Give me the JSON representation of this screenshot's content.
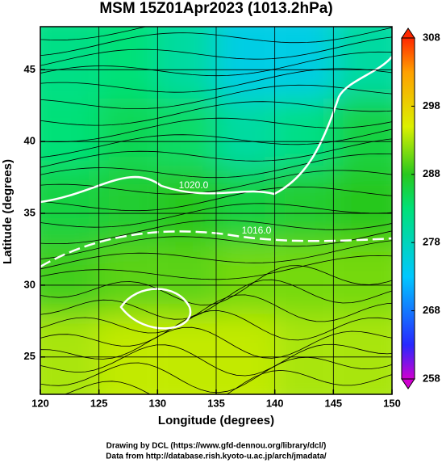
{
  "chart_data": {
    "type": "heatmap",
    "title": "MSM 15Z01Apr2023 (1013.2hPa)",
    "x_label": "Longitude (degrees)",
    "y_label": "Latitude  (degrees)",
    "xlim": [
      120,
      150
    ],
    "ylim": [
      22.4,
      48
    ],
    "xticks": [
      120,
      125,
      130,
      135,
      140,
      145,
      150
    ],
    "yticks": [
      25,
      30,
      35,
      40,
      45
    ],
    "x_edges": [
      120,
      125,
      130,
      135,
      140,
      145,
      150
    ],
    "y_edges": [
      48,
      43,
      38,
      33,
      28,
      22.4
    ],
    "values": [
      [
        282,
        283,
        280,
        275,
        275,
        280
      ],
      [
        283,
        285,
        284,
        280,
        282,
        286
      ],
      [
        286,
        287,
        288,
        286,
        287,
        288
      ],
      [
        289,
        290,
        290,
        291,
        291,
        291
      ],
      [
        293,
        294,
        294,
        294,
        293,
        293
      ]
    ],
    "colorbar": {
      "lim": [
        258,
        308
      ],
      "ticks": [
        258,
        268,
        278,
        288,
        298,
        308
      ]
    },
    "annotations": [
      "1020.0",
      "1016.0"
    ]
  },
  "credits": [
    "Drawing by DCL (https://www.gfd-dennou.org/library/dcl/)",
    "Data from http://database.rish.kyoto-u.ac.jp/arch/jmadata/"
  ]
}
